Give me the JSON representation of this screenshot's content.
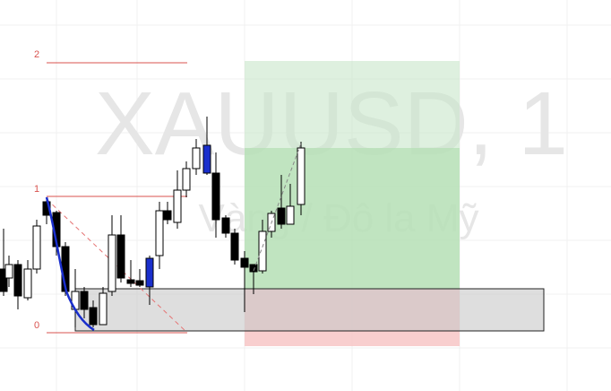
{
  "watermark": {
    "symbol": "XAUUSD, 1",
    "description": "Vàng / Đô la Mỹ"
  },
  "fib_levels": {
    "labels": [
      "2",
      "1",
      "0"
    ]
  }
}
